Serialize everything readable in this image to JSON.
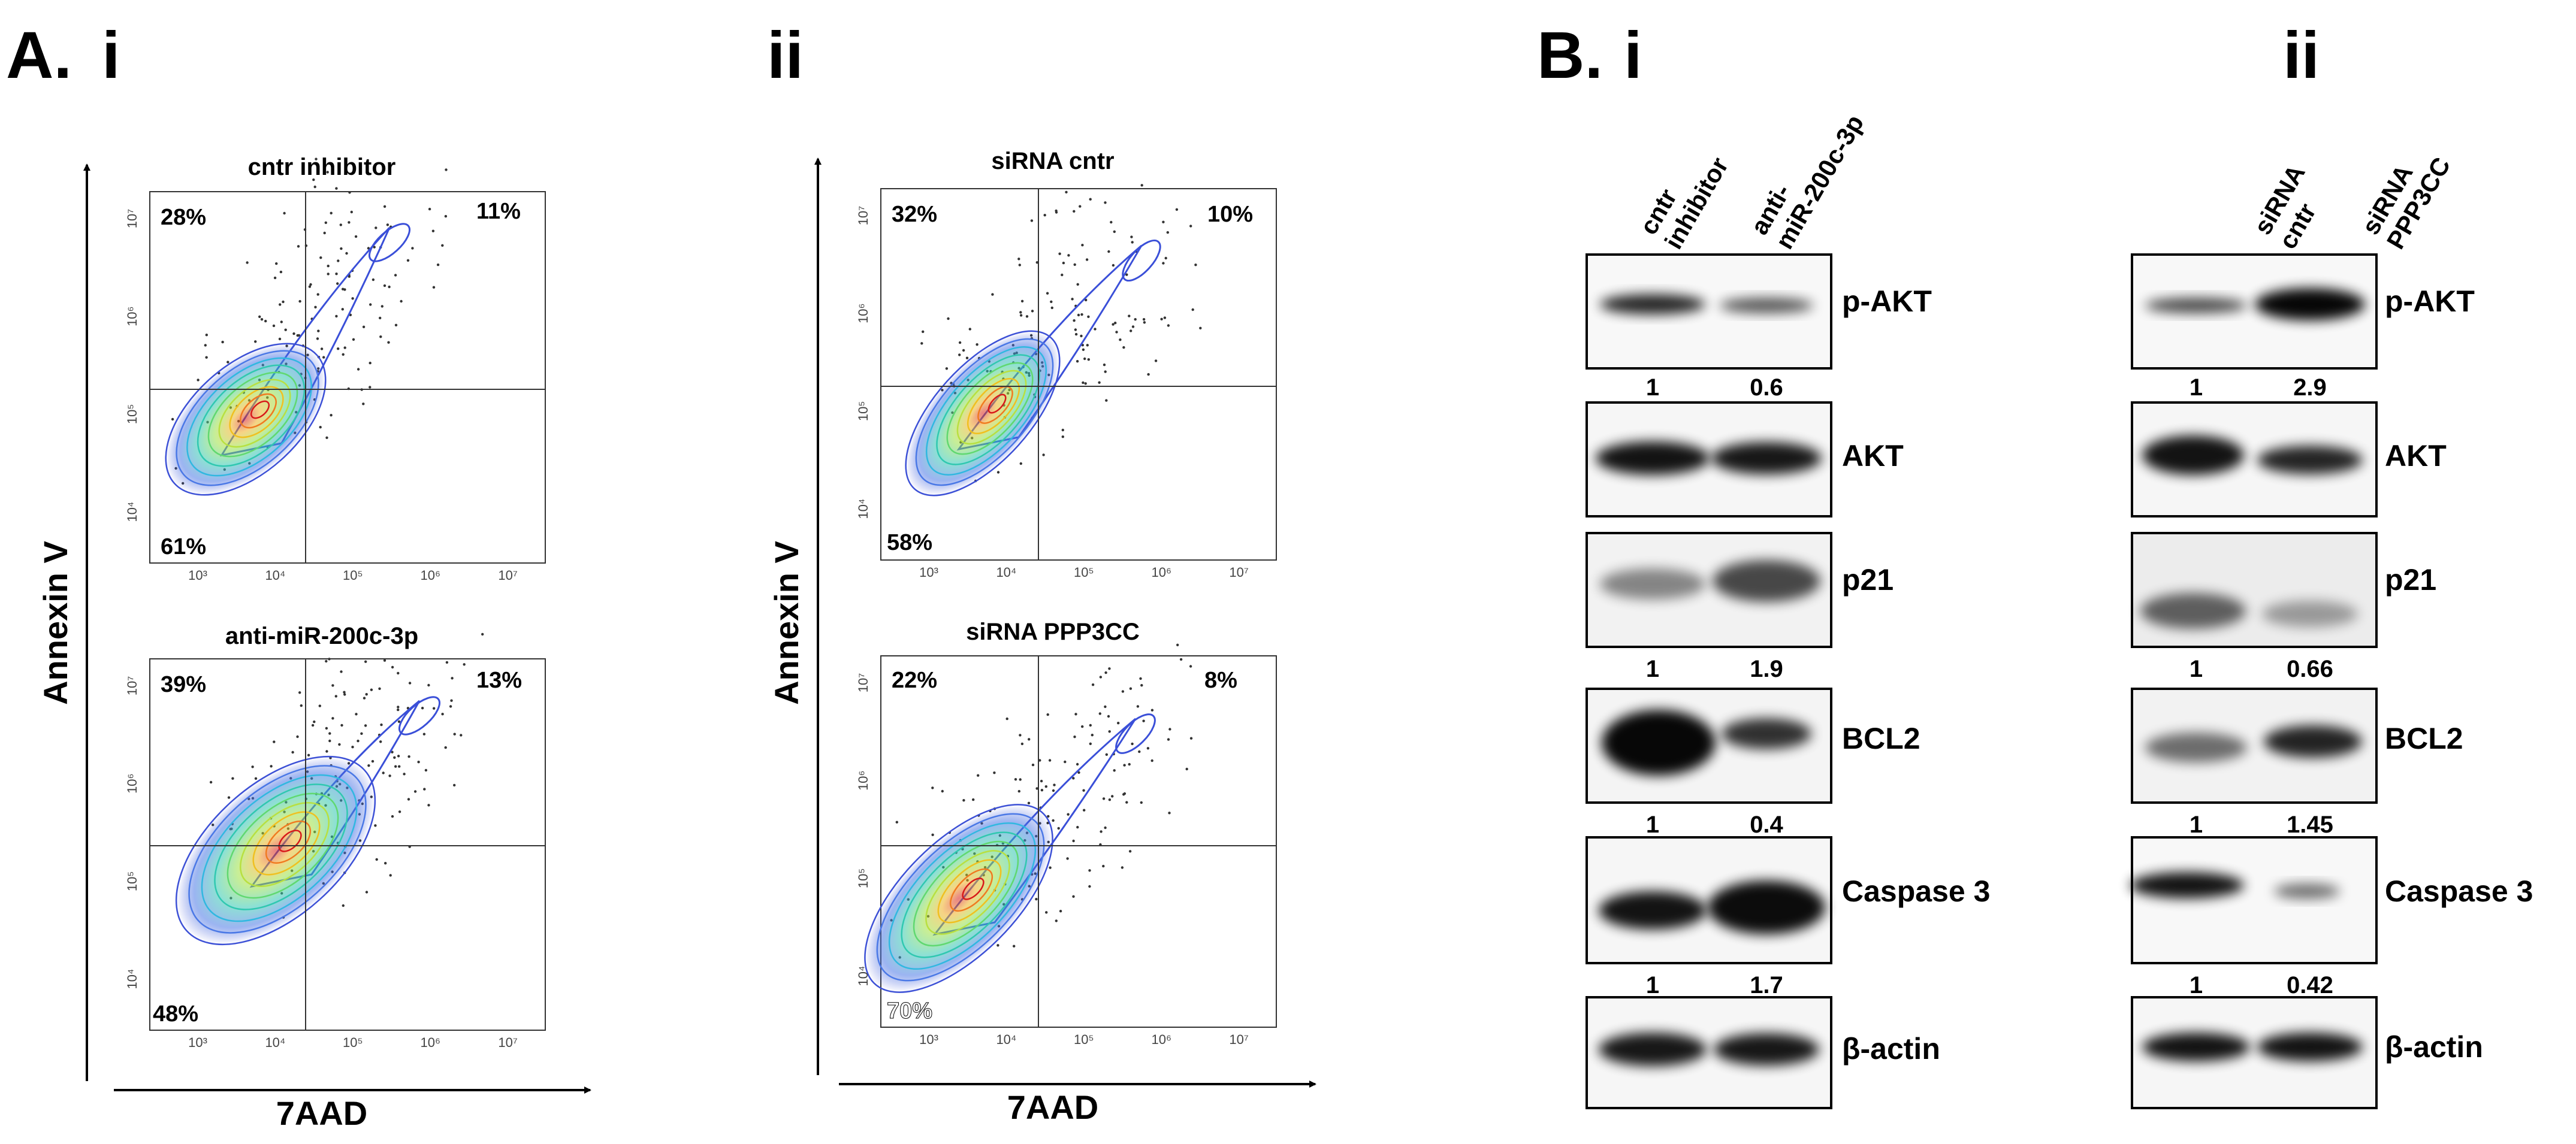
{
  "panel_A": {
    "label": "A.",
    "section_i": "i",
    "section_ii": "ii",
    "xaxis_label": "7AAD",
    "yaxis_label": "Annexin V",
    "y_ticks": [
      "10⁷",
      "10⁶",
      "10⁵",
      "10⁴"
    ],
    "x_ticks": [
      "10³",
      "10⁴",
      "10⁵",
      "10⁶",
      "10⁷"
    ],
    "plots": [
      {
        "title": "cntr inhibitor",
        "q_upper_left": "28%",
        "q_upper_right": "11%",
        "q_lower_left": "61%"
      },
      {
        "title": "anti-miR-200c-3p",
        "q_upper_left": "39%",
        "q_upper_right": "13%",
        "q_lower_left": "48%"
      },
      {
        "title": "siRNA cntr",
        "q_upper_left": "32%",
        "q_upper_right": "10%",
        "q_lower_left": "58%"
      },
      {
        "title": "siRNA PPP3CC",
        "q_upper_left": "22%",
        "q_upper_right": "8%",
        "q_lower_left": "70%"
      }
    ]
  },
  "panel_B": {
    "label": "B.",
    "section_i": "i",
    "section_ii": "ii",
    "i": {
      "lanes": [
        [
          "cntr",
          "inhibitor"
        ],
        [
          "anti-",
          "miR-200c-3p"
        ]
      ],
      "blots": [
        {
          "protein": "p-AKT",
          "values": [
            "1",
            "0.6"
          ]
        },
        {
          "protein": "AKT",
          "values": []
        },
        {
          "protein": "p21",
          "values": [
            "1",
            "1.9"
          ]
        },
        {
          "protein": "BCL2",
          "values": [
            "1",
            "0.4"
          ]
        },
        {
          "protein": "Caspase 3",
          "values": [
            "1",
            "1.7"
          ]
        },
        {
          "protein": "β-actin",
          "values": []
        }
      ]
    },
    "ii": {
      "lanes": [
        [
          "siRNA",
          "cntr"
        ],
        [
          "siRNA",
          "PPP3CC"
        ]
      ],
      "blots": [
        {
          "protein": "p-AKT",
          "values": [
            "1",
            "2.9"
          ]
        },
        {
          "protein": "AKT",
          "values": []
        },
        {
          "protein": "p21",
          "values": [
            "1",
            "0.66"
          ]
        },
        {
          "protein": "BCL2",
          "values": [
            "1",
            "1.45"
          ]
        },
        {
          "protein": "Caspase 3",
          "values": [
            "1",
            "0.42"
          ]
        },
        {
          "protein": "β-actin",
          "values": []
        }
      ]
    }
  }
}
